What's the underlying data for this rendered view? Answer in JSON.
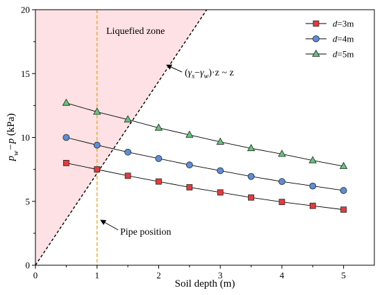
{
  "chart_data": {
    "type": "line",
    "xlabel": "Soil depth (m)",
    "ylabel": "p_w−p (kPa)",
    "xlim": [
      0,
      5.5
    ],
    "ylim": [
      0,
      20
    ],
    "x_ticks": [
      "0",
      "1",
      "2",
      "3",
      "4",
      "5"
    ],
    "y_ticks": [
      "0",
      "5",
      "10",
      "15",
      "20"
    ],
    "x": [
      0.5,
      1,
      1.5,
      2,
      2.5,
      3,
      3.5,
      4,
      4.5,
      5
    ],
    "series": [
      {
        "name": "d=3m",
        "prefix": "d",
        "suffix": "=3m",
        "marker": "square",
        "color": "#e8393c",
        "values": [
          8.0,
          7.5,
          7.0,
          6.55,
          6.1,
          5.7,
          5.3,
          4.95,
          4.65,
          4.35
        ]
      },
      {
        "name": "d=4m",
        "prefix": "d",
        "suffix": "=4m",
        "marker": "circle",
        "color": "#5b8ed6",
        "values": [
          10.0,
          9.4,
          8.85,
          8.35,
          7.85,
          7.4,
          6.95,
          6.55,
          6.2,
          5.85
        ]
      },
      {
        "name": "d=5m",
        "prefix": "d",
        "suffix": "=5m",
        "marker": "triangle",
        "color": "#5ec87a",
        "values": [
          12.7,
          12.0,
          11.4,
          10.75,
          10.2,
          9.65,
          9.15,
          8.7,
          8.2,
          7.75
        ]
      }
    ],
    "liquefied_zone": {
      "label": "Liquefied zone",
      "boundary_line": {
        "x": [
          0,
          2.78
        ],
        "y": [
          0,
          20
        ]
      },
      "fill_color": "#fde1e4"
    },
    "boundary_label": {
      "open_paren": "(",
      "gamma1": "γ",
      "sub1": "s",
      "minus": "−",
      "gamma2": "γ",
      "sub2": "w",
      "rest": ")·z ~ z"
    },
    "pipe_position": {
      "x": 1,
      "label": "Pipe position",
      "color": "#e8a317"
    },
    "legend_position": "top-right",
    "grid": false
  }
}
